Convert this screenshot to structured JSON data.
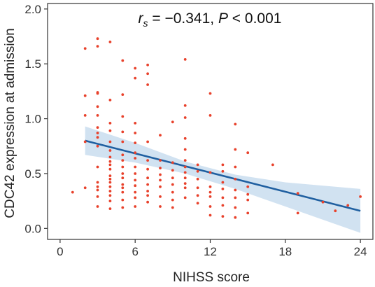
{
  "chart_data": {
    "type": "scatter",
    "title": "",
    "xlabel": "NIHSS score",
    "ylabel": "CDC42 expression at admission",
    "xlim": [
      -1,
      25
    ],
    "ylim": [
      -0.1,
      2.05
    ],
    "x_ticks": [
      0,
      6,
      12,
      18,
      24
    ],
    "y_ticks": [
      0.0,
      0.5,
      1.0,
      1.5,
      2.0
    ],
    "x_tick_labels": [
      "0",
      "6",
      "12",
      "18",
      "24"
    ],
    "y_tick_labels": [
      "0.0",
      "0.5",
      "1.0",
      "1.5",
      "2.0"
    ],
    "grid": false,
    "annotation": {
      "r_symbol": "r",
      "r_subscript": "s",
      "r_value": " = −0.341, ",
      "p_symbol": "P",
      "p_value": " < 0.001"
    },
    "point_color": "#e8412b",
    "line_color": "#1f5fa0",
    "band_color": "#c9ddef",
    "regression": {
      "x_start": 2,
      "y_start": 0.8,
      "x_end": 24,
      "y_end": 0.16
    },
    "confidence_band": {
      "x": [
        2,
        6,
        10,
        14,
        18,
        22,
        24
      ],
      "upper": [
        0.93,
        0.78,
        0.61,
        0.49,
        0.42,
        0.38,
        0.36
      ],
      "lower": [
        0.67,
        0.6,
        0.5,
        0.36,
        0.2,
        0.04,
        -0.04
      ]
    },
    "points": [
      {
        "x": 1,
        "y": 0.33
      },
      {
        "x": 2,
        "y": 1.64
      },
      {
        "x": 2,
        "y": 1.21
      },
      {
        "x": 2,
        "y": 1.03
      },
      {
        "x": 2,
        "y": 0.79
      },
      {
        "x": 2,
        "y": 0.37
      },
      {
        "x": 3,
        "y": 1.73
      },
      {
        "x": 3,
        "y": 1.66
      },
      {
        "x": 3,
        "y": 1.24
      },
      {
        "x": 3,
        "y": 1.23
      },
      {
        "x": 3,
        "y": 1.11
      },
      {
        "x": 3,
        "y": 1.03
      },
      {
        "x": 3,
        "y": 0.92
      },
      {
        "x": 3,
        "y": 0.87
      },
      {
        "x": 3,
        "y": 0.83
      },
      {
        "x": 3,
        "y": 0.75
      },
      {
        "x": 3,
        "y": 0.56
      },
      {
        "x": 3,
        "y": 0.42
      },
      {
        "x": 3,
        "y": 0.38
      },
      {
        "x": 3,
        "y": 0.35
      },
      {
        "x": 3,
        "y": 0.29
      },
      {
        "x": 3,
        "y": 0.2
      },
      {
        "x": 4,
        "y": 1.7
      },
      {
        "x": 4,
        "y": 1.17
      },
      {
        "x": 4,
        "y": 0.96
      },
      {
        "x": 4,
        "y": 0.89
      },
      {
        "x": 4,
        "y": 0.79
      },
      {
        "x": 4,
        "y": 0.71
      },
      {
        "x": 4,
        "y": 0.65
      },
      {
        "x": 4,
        "y": 0.61
      },
      {
        "x": 4,
        "y": 0.58
      },
      {
        "x": 4,
        "y": 0.54
      },
      {
        "x": 4,
        "y": 0.48
      },
      {
        "x": 4,
        "y": 0.45
      },
      {
        "x": 4,
        "y": 0.42
      },
      {
        "x": 4,
        "y": 0.38
      },
      {
        "x": 4,
        "y": 0.34
      },
      {
        "x": 4,
        "y": 0.3
      },
      {
        "x": 4,
        "y": 0.25
      },
      {
        "x": 4,
        "y": 0.18
      },
      {
        "x": 5,
        "y": 1.53
      },
      {
        "x": 5,
        "y": 1.22
      },
      {
        "x": 5,
        "y": 1.02
      },
      {
        "x": 5,
        "y": 0.88
      },
      {
        "x": 5,
        "y": 0.79
      },
      {
        "x": 5,
        "y": 0.67
      },
      {
        "x": 5,
        "y": 0.62
      },
      {
        "x": 5,
        "y": 0.56
      },
      {
        "x": 5,
        "y": 0.5
      },
      {
        "x": 5,
        "y": 0.46
      },
      {
        "x": 5,
        "y": 0.4
      },
      {
        "x": 5,
        "y": 0.37
      },
      {
        "x": 5,
        "y": 0.33
      },
      {
        "x": 5,
        "y": 0.26
      },
      {
        "x": 5,
        "y": 0.19
      },
      {
        "x": 6,
        "y": 1.46
      },
      {
        "x": 6,
        "y": 1.37
      },
      {
        "x": 6,
        "y": 0.96
      },
      {
        "x": 6,
        "y": 0.87
      },
      {
        "x": 6,
        "y": 0.78
      },
      {
        "x": 6,
        "y": 0.69
      },
      {
        "x": 6,
        "y": 0.64
      },
      {
        "x": 6,
        "y": 0.56
      },
      {
        "x": 6,
        "y": 0.5
      },
      {
        "x": 6,
        "y": 0.44
      },
      {
        "x": 6,
        "y": 0.39
      },
      {
        "x": 6,
        "y": 0.33
      },
      {
        "x": 6,
        "y": 0.28
      },
      {
        "x": 6,
        "y": 0.2
      },
      {
        "x": 7,
        "y": 1.49
      },
      {
        "x": 7,
        "y": 1.41
      },
      {
        "x": 7,
        "y": 1.31
      },
      {
        "x": 7,
        "y": 0.79
      },
      {
        "x": 7,
        "y": 0.62
      },
      {
        "x": 7,
        "y": 0.54
      },
      {
        "x": 7,
        "y": 0.46
      },
      {
        "x": 7,
        "y": 0.4
      },
      {
        "x": 7,
        "y": 0.34
      },
      {
        "x": 7,
        "y": 0.3
      },
      {
        "x": 7,
        "y": 0.24
      },
      {
        "x": 8,
        "y": 0.85
      },
      {
        "x": 8,
        "y": 0.62
      },
      {
        "x": 8,
        "y": 0.55
      },
      {
        "x": 8,
        "y": 0.49
      },
      {
        "x": 8,
        "y": 0.44
      },
      {
        "x": 8,
        "y": 0.38
      },
      {
        "x": 8,
        "y": 0.29
      },
      {
        "x": 8,
        "y": 0.2
      },
      {
        "x": 9,
        "y": 0.97
      },
      {
        "x": 9,
        "y": 0.6
      },
      {
        "x": 9,
        "y": 0.53
      },
      {
        "x": 9,
        "y": 0.46
      },
      {
        "x": 9,
        "y": 0.4
      },
      {
        "x": 9,
        "y": 0.33
      },
      {
        "x": 9,
        "y": 0.26
      },
      {
        "x": 9,
        "y": 0.19
      },
      {
        "x": 10,
        "y": 1.54
      },
      {
        "x": 10,
        "y": 1.12
      },
      {
        "x": 10,
        "y": 1.01
      },
      {
        "x": 10,
        "y": 0.82
      },
      {
        "x": 10,
        "y": 0.72
      },
      {
        "x": 10,
        "y": 0.62
      },
      {
        "x": 10,
        "y": 0.56
      },
      {
        "x": 10,
        "y": 0.51
      },
      {
        "x": 10,
        "y": 0.46
      },
      {
        "x": 10,
        "y": 0.41
      },
      {
        "x": 10,
        "y": 0.37
      },
      {
        "x": 10,
        "y": 0.28
      },
      {
        "x": 11,
        "y": 0.58
      },
      {
        "x": 11,
        "y": 0.52
      },
      {
        "x": 11,
        "y": 0.45
      },
      {
        "x": 11,
        "y": 0.37
      },
      {
        "x": 11,
        "y": 0.3
      },
      {
        "x": 11,
        "y": 0.23
      },
      {
        "x": 12,
        "y": 1.23
      },
      {
        "x": 12,
        "y": 1.03
      },
      {
        "x": 12,
        "y": 0.51
      },
      {
        "x": 12,
        "y": 0.38
      },
      {
        "x": 12,
        "y": 0.33
      },
      {
        "x": 12,
        "y": 0.29
      },
      {
        "x": 12,
        "y": 0.2
      },
      {
        "x": 12,
        "y": 0.12
      },
      {
        "x": 13,
        "y": 0.58
      },
      {
        "x": 13,
        "y": 0.52
      },
      {
        "x": 13,
        "y": 0.42
      },
      {
        "x": 13,
        "y": 0.36
      },
      {
        "x": 13,
        "y": 0.28
      },
      {
        "x": 13,
        "y": 0.21
      },
      {
        "x": 13,
        "y": 0.11
      },
      {
        "x": 14,
        "y": 0.95
      },
      {
        "x": 14,
        "y": 0.72
      },
      {
        "x": 14,
        "y": 0.56
      },
      {
        "x": 14,
        "y": 0.45
      },
      {
        "x": 14,
        "y": 0.35
      },
      {
        "x": 14,
        "y": 0.28
      },
      {
        "x": 14,
        "y": 0.19
      },
      {
        "x": 14,
        "y": 0.1
      },
      {
        "x": 15,
        "y": 0.69
      },
      {
        "x": 15,
        "y": 0.38
      },
      {
        "x": 15,
        "y": 0.31
      },
      {
        "x": 15,
        "y": 0.26
      },
      {
        "x": 15,
        "y": 0.14
      },
      {
        "x": 17,
        "y": 0.58
      },
      {
        "x": 19,
        "y": 0.32
      },
      {
        "x": 19,
        "y": 0.14
      },
      {
        "x": 21,
        "y": 0.24
      },
      {
        "x": 22,
        "y": 0.16
      },
      {
        "x": 23,
        "y": 0.21
      },
      {
        "x": 24,
        "y": 0.29
      }
    ]
  }
}
